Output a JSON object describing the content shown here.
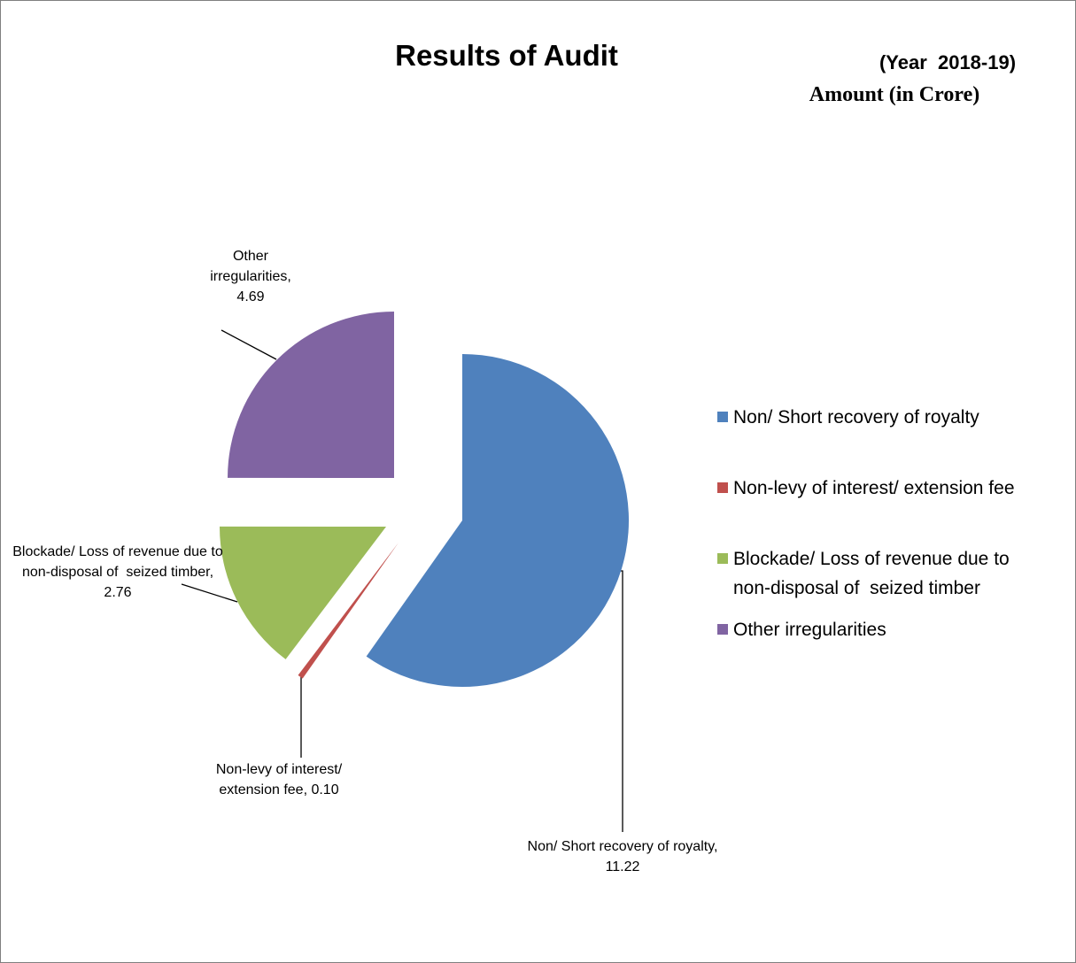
{
  "chart_data": {
    "type": "pie",
    "title": "Results of Audit",
    "subtitle": "(Year  2018-19)",
    "unit_label": "Amount (in Crore)",
    "categories": [
      "Non/ Short recovery of royalty",
      "Non-levy of interest/ extension fee",
      "Blockade/ Loss of revenue due to non-disposal of  seized timber",
      "Other irregularities"
    ],
    "values": [
      11.22,
      0.1,
      2.76,
      4.69
    ],
    "value_labels": [
      "Non/ Short recovery of royalty, 11.22",
      "Non-levy of interest/ extension fee, 0.10",
      "Blockade/ Loss of revenue due to non-disposal of  seized timber, 2.76",
      "Other irregularities, 4.69"
    ],
    "colors": [
      "#4f81bd",
      "#c0504d",
      "#9bbb59",
      "#8064a2"
    ],
    "legend": "right"
  }
}
